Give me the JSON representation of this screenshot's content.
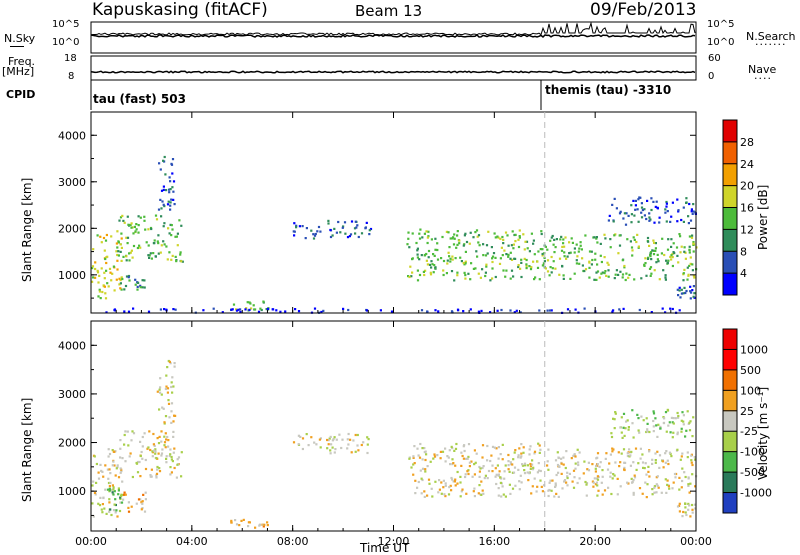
{
  "header": {
    "station": "Kapuskasing (fitACF)",
    "beam": "Beam 13",
    "date": "09/Feb/2013"
  },
  "strips": {
    "nsky_label": "N.Sky",
    "nsearch_label": "N.Search",
    "left_ticks_top": [
      "10^5",
      "10^0"
    ],
    "right_ticks_top": [
      "10^5",
      "10^0"
    ],
    "freq_label": "Freq.",
    "freq_unit": "[MHz]",
    "freq_ticks": [
      "18",
      "8"
    ],
    "nave_label": "Nave",
    "nave_ticks": [
      "60",
      "0"
    ],
    "cpid_label": "CPID",
    "cpid_1": "tau (fast) 503",
    "cpid_2": "themis (tau) -3310"
  },
  "chart_data": [
    {
      "type": "heatmap",
      "name_panel": "power",
      "ylabel": "Slant Range [km]",
      "colorbar_label": "Power [dB]",
      "colorbar_ticks": [
        "28",
        "24",
        "20",
        "16",
        "12",
        "8",
        "4"
      ],
      "colors": [
        "#0000ff",
        "#2a4fb6",
        "#2f8c5a",
        "#4dbb3a",
        "#cfd42a",
        "#f2a000",
        "#f06000",
        "#e00000"
      ],
      "xlim": [
        0,
        24
      ],
      "ylim": [
        180,
        4500
      ],
      "yticks": [
        1000,
        2000,
        3000,
        4000
      ],
      "xticks": [
        "00:00",
        "04:00",
        "08:00",
        "12:00",
        "16:00",
        "20:00",
        "00:00"
      ],
      "regions": [
        {
          "t": [
            0.0,
            1.2
          ],
          "r": [
            500,
            1900
          ],
          "level": 4
        },
        {
          "t": [
            1.0,
            3.6
          ],
          "r": [
            1300,
            2300
          ],
          "level": 3
        },
        {
          "t": [
            1.1,
            2.1
          ],
          "r": [
            700,
            1000
          ],
          "level": 2
        },
        {
          "t": [
            2.6,
            3.3
          ],
          "r": [
            2400,
            3700
          ],
          "level": 1
        },
        {
          "t": [
            5.5,
            7.0
          ],
          "r": [
            250,
            450
          ],
          "level": 3
        },
        {
          "t": [
            8.0,
            11.2
          ],
          "r": [
            1800,
            2200
          ],
          "level": 1
        },
        {
          "t": [
            12.5,
            18.0
          ],
          "r": [
            900,
            2000
          ],
          "level": 3
        },
        {
          "t": [
            18.0,
            24.0
          ],
          "r": [
            900,
            1900
          ],
          "level": 3
        },
        {
          "t": [
            20.5,
            24.0
          ],
          "r": [
            2100,
            2700
          ],
          "level": 1
        },
        {
          "t": [
            23.2,
            24.0
          ],
          "r": [
            500,
            800
          ],
          "level": 1
        },
        {
          "t": [
            0.5,
            23.5
          ],
          "r": [
            200,
            300
          ],
          "level": 0
        }
      ]
    },
    {
      "type": "heatmap",
      "name_panel": "velocity",
      "ylabel": "Slant Range [km]",
      "xlabel": "Time UT",
      "colorbar_label": "Velocity [m s⁻¹]",
      "colorbar_ticks": [
        "1000",
        "500",
        "100",
        "25",
        "-25",
        "-100",
        "-500",
        "-1000"
      ],
      "colors": [
        "#2040c0",
        "#2a7a5a",
        "#4cb84a",
        "#a8cf4a",
        "#c8c8c0",
        "#f0a020",
        "#f07000",
        "#ff0000",
        "#ee0000"
      ],
      "xlim": [
        0,
        24
      ],
      "ylim": [
        180,
        4500
      ],
      "yticks": [
        1000,
        2000,
        3000,
        4000
      ],
      "xticks": [
        "00:00",
        "04:00",
        "08:00",
        "12:00",
        "16:00",
        "20:00",
        "00:00"
      ],
      "regions": [
        {
          "t": [
            0.0,
            1.2
          ],
          "r": [
            500,
            1900
          ],
          "level": 4
        },
        {
          "t": [
            0.6,
            1.2
          ],
          "r": [
            600,
            1100
          ],
          "level": 2
        },
        {
          "t": [
            1.0,
            3.6
          ],
          "r": [
            1300,
            2300
          ],
          "level": 4
        },
        {
          "t": [
            1.2,
            2.2
          ],
          "r": [
            600,
            1000
          ],
          "level": 5
        },
        {
          "t": [
            2.6,
            3.3
          ],
          "r": [
            2400,
            3700
          ],
          "level": 4
        },
        {
          "t": [
            5.5,
            7.0
          ],
          "r": [
            250,
            450
          ],
          "level": 5
        },
        {
          "t": [
            8.0,
            11.2
          ],
          "r": [
            1800,
            2200
          ],
          "level": 4
        },
        {
          "t": [
            12.5,
            18.0
          ],
          "r": [
            900,
            2000
          ],
          "level": 4
        },
        {
          "t": [
            18.0,
            24.0
          ],
          "r": [
            900,
            1900
          ],
          "level": 4
        },
        {
          "t": [
            20.5,
            24.0
          ],
          "r": [
            2100,
            2700
          ],
          "level": 3
        },
        {
          "t": [
            23.2,
            24.0
          ],
          "r": [
            500,
            800
          ],
          "level": 4
        }
      ]
    }
  ]
}
